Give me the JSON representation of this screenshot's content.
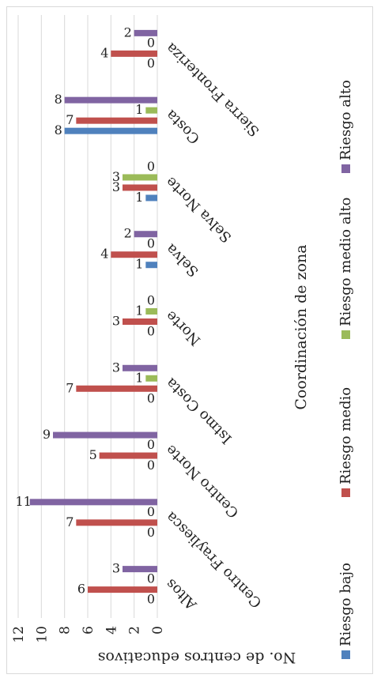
{
  "chart_data": {
    "type": "bar",
    "title": "",
    "xlabel": "Coordinación de zona",
    "ylabel": "No. de centros educativos",
    "ylim": [
      0,
      12
    ],
    "yticks": [
      0,
      2,
      4,
      6,
      8,
      10,
      12
    ],
    "grid": true,
    "legend_position": "bottom",
    "categories": [
      "Altos",
      "Centro Frayliesca",
      "Centro Norte",
      "Istmo Costa",
      "Norte",
      "Selva",
      "Selva Norte",
      "Costa",
      "Sierra Fronteriza"
    ],
    "series": [
      {
        "name": "Riesgo bajo",
        "color": "#4f81bd",
        "values": [
          0,
          0,
          0,
          0,
          0,
          1,
          1,
          8,
          0
        ]
      },
      {
        "name": "Riesgo medio",
        "color": "#c0504d",
        "values": [
          6,
          7,
          5,
          7,
          3,
          4,
          3,
          7,
          4
        ]
      },
      {
        "name": "Riesgo medio alto",
        "color": "#9bbb59",
        "values": [
          0,
          0,
          0,
          1,
          1,
          0,
          3,
          1,
          0
        ]
      },
      {
        "name": "Riesgo alto",
        "color": "#8064a2",
        "values": [
          3,
          11,
          9,
          3,
          0,
          2,
          0,
          8,
          2
        ]
      }
    ]
  }
}
